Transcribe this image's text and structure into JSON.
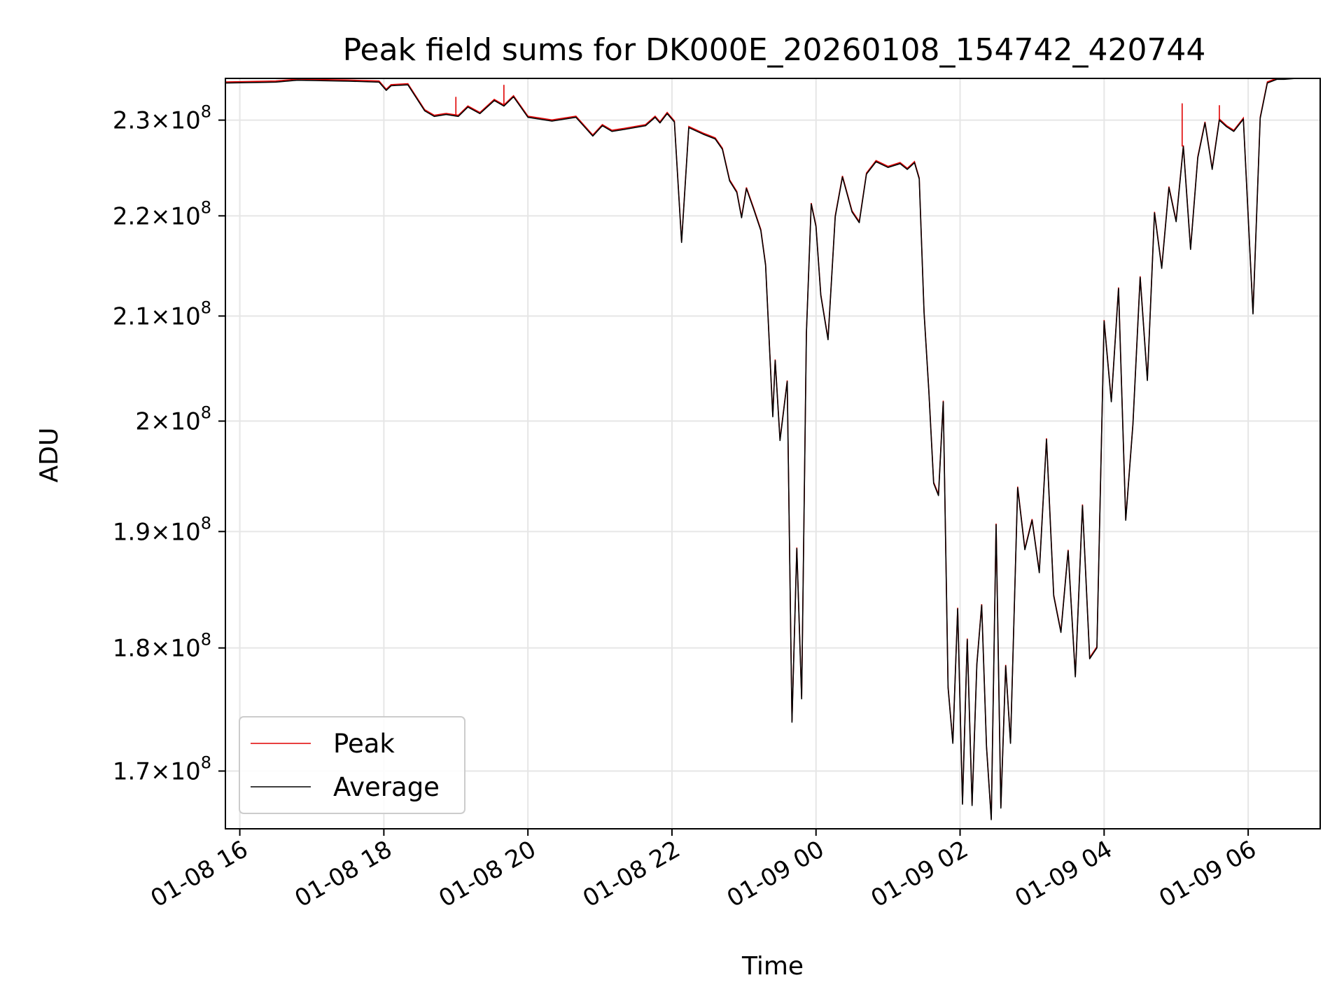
{
  "chart_data": {
    "type": "line",
    "title": "Peak field sums for DK000E_20260108_154742_420744",
    "xlabel": "Time",
    "ylabel": "ADU",
    "y_scale": "log",
    "grid": true,
    "legend_position": "lower-left",
    "xlim": [
      "2026-01-08 15:48",
      "2026-01-09 07:00"
    ],
    "ylim": [
      165500000,
      234500000
    ],
    "x_ticks": [
      {
        "value": "2026-01-08 16:00",
        "label": "01-08 16"
      },
      {
        "value": "2026-01-08 18:00",
        "label": "01-08 18"
      },
      {
        "value": "2026-01-08 20:00",
        "label": "01-08 20"
      },
      {
        "value": "2026-01-08 22:00",
        "label": "01-08 22"
      },
      {
        "value": "2026-01-09 00:00",
        "label": "01-09 00"
      },
      {
        "value": "2026-01-09 02:00",
        "label": "01-09 02"
      },
      {
        "value": "2026-01-09 04:00",
        "label": "01-09 04"
      },
      {
        "value": "2026-01-09 06:00",
        "label": "01-09 06"
      }
    ],
    "y_ticks": [
      {
        "value": 170000000,
        "mantissa": "1.7",
        "exp": "8"
      },
      {
        "value": 180000000,
        "mantissa": "1.8",
        "exp": "8"
      },
      {
        "value": 190000000,
        "mantissa": "1.9",
        "exp": "8"
      },
      {
        "value": 200000000,
        "mantissa": "2",
        "exp": "8"
      },
      {
        "value": 210000000,
        "mantissa": "2.1",
        "exp": "8"
      },
      {
        "value": 220000000,
        "mantissa": "2.2",
        "exp": "8"
      },
      {
        "value": 230000000,
        "mantissa": "2.3",
        "exp": "8"
      }
    ],
    "tick_times": "×10",
    "series": [
      {
        "name": "Peak",
        "color": "#e00000",
        "spikes": [
          {
            "x": "2026-01-08 19:00",
            "y": 232500000
          },
          {
            "x": "2026-01-08 19:40",
            "y": 233800000
          },
          {
            "x": "2026-01-09 05:05",
            "y": 231800000
          },
          {
            "x": "2026-01-09 05:36",
            "y": 231600000
          }
        ]
      },
      {
        "name": "Average",
        "color": "#000000",
        "x": [
          "2026-01-08 15:48",
          "2026-01-08 16:30",
          "2026-01-08 16:48",
          "2026-01-08 17:30",
          "2026-01-08 17:56",
          "2026-01-08 18:02",
          "2026-01-08 18:06",
          "2026-01-08 18:20",
          "2026-01-08 18:34",
          "2026-01-08 18:42",
          "2026-01-08 18:52",
          "2026-01-08 19:02",
          "2026-01-08 19:10",
          "2026-01-08 19:20",
          "2026-01-08 19:32",
          "2026-01-08 19:40",
          "2026-01-08 19:48",
          "2026-01-08 20:00",
          "2026-01-08 20:20",
          "2026-01-08 20:40",
          "2026-01-08 20:54",
          "2026-01-08 21:02",
          "2026-01-08 21:10",
          "2026-01-08 21:20",
          "2026-01-08 21:38",
          "2026-01-08 21:46",
          "2026-01-08 21:50",
          "2026-01-08 21:56",
          "2026-01-08 22:02",
          "2026-01-08 22:08",
          "2026-01-08 22:14",
          "2026-01-08 22:26",
          "2026-01-08 22:36",
          "2026-01-08 22:42",
          "2026-01-08 22:48",
          "2026-01-08 22:54",
          "2026-01-08 22:58",
          "2026-01-08 23:02",
          "2026-01-08 23:08",
          "2026-01-08 23:14",
          "2026-01-08 23:18",
          "2026-01-08 23:24",
          "2026-01-08 23:26",
          "2026-01-08 23:30",
          "2026-01-08 23:36",
          "2026-01-08 23:40",
          "2026-01-08 23:44",
          "2026-01-08 23:48",
          "2026-01-08 23:52",
          "2026-01-08 23:56",
          "2026-01-09 00:00",
          "2026-01-09 00:04",
          "2026-01-09 00:10",
          "2026-01-09 00:16",
          "2026-01-09 00:22",
          "2026-01-09 00:30",
          "2026-01-09 00:36",
          "2026-01-09 00:42",
          "2026-01-09 00:50",
          "2026-01-09 01:00",
          "2026-01-09 01:10",
          "2026-01-09 01:16",
          "2026-01-09 01:22",
          "2026-01-09 01:26",
          "2026-01-09 01:30",
          "2026-01-09 01:34",
          "2026-01-09 01:38",
          "2026-01-09 01:42",
          "2026-01-09 01:46",
          "2026-01-09 01:50",
          "2026-01-09 01:54",
          "2026-01-09 01:58",
          "2026-01-09 02:02",
          "2026-01-09 02:06",
          "2026-01-09 02:10",
          "2026-01-09 02:14",
          "2026-01-09 02:18",
          "2026-01-09 02:22",
          "2026-01-09 02:26",
          "2026-01-09 02:30",
          "2026-01-09 02:34",
          "2026-01-09 02:38",
          "2026-01-09 02:42",
          "2026-01-09 02:48",
          "2026-01-09 02:54",
          "2026-01-09 03:00",
          "2026-01-09 03:06",
          "2026-01-09 03:12",
          "2026-01-09 03:18",
          "2026-01-09 03:24",
          "2026-01-09 03:30",
          "2026-01-09 03:36",
          "2026-01-09 03:42",
          "2026-01-09 03:48",
          "2026-01-09 03:54",
          "2026-01-09 04:00",
          "2026-01-09 04:06",
          "2026-01-09 04:12",
          "2026-01-09 04:18",
          "2026-01-09 04:24",
          "2026-01-09 04:30",
          "2026-01-09 04:36",
          "2026-01-09 04:42",
          "2026-01-09 04:48",
          "2026-01-09 04:54",
          "2026-01-09 05:00",
          "2026-01-09 05:06",
          "2026-01-09 05:12",
          "2026-01-09 05:18",
          "2026-01-09 05:24",
          "2026-01-09 05:30",
          "2026-01-09 05:36",
          "2026-01-09 05:42",
          "2026-01-09 05:48",
          "2026-01-09 05:56",
          "2026-01-09 06:04",
          "2026-01-09 06:10",
          "2026-01-09 06:16",
          "2026-01-09 06:24",
          "2026-01-09 06:30",
          "2026-01-09 06:40",
          "2026-01-09 07:00"
        ],
        "values": [
          234000000,
          234100000,
          234300000,
          234200000,
          234100000,
          233200000,
          233700000,
          233800000,
          231000000,
          230400000,
          230600000,
          230400000,
          231400000,
          230700000,
          232100000,
          231500000,
          232500000,
          230300000,
          229900000,
          230300000,
          228300000,
          229400000,
          228800000,
          229000000,
          229400000,
          230300000,
          229700000,
          230700000,
          229800000,
          217300000,
          229200000,
          228500000,
          228000000,
          226900000,
          223600000,
          222400000,
          219800000,
          222800000,
          220700000,
          218500000,
          215000000,
          200400000,
          205700000,
          198200000,
          203700000,
          173900000,
          188500000,
          175800000,
          208300000,
          221200000,
          218900000,
          212000000,
          207700000,
          219900000,
          224000000,
          220400000,
          219300000,
          224300000,
          225600000,
          225000000,
          225400000,
          224800000,
          225500000,
          223800000,
          210300000,
          202800000,
          194300000,
          193200000,
          201800000,
          176700000,
          172200000,
          183300000,
          167400000,
          180700000,
          167300000,
          178600000,
          183600000,
          171900000,
          166200000,
          190600000,
          167100000,
          178500000,
          172200000,
          193900000,
          188400000,
          191000000,
          186400000,
          198300000,
          184400000,
          181300000,
          188300000,
          177600000,
          192300000,
          179100000,
          180000000,
          209500000,
          201800000,
          212700000,
          191000000,
          199700000,
          213800000,
          203800000,
          220300000,
          214700000,
          222900000,
          219400000,
          227200000,
          216600000,
          226000000,
          229700000,
          224800000,
          230000000,
          229300000,
          228800000,
          230100000,
          210200000,
          230200000,
          234000000,
          234400000,
          234400000,
          234500000,
          234600000
        ]
      }
    ]
  }
}
